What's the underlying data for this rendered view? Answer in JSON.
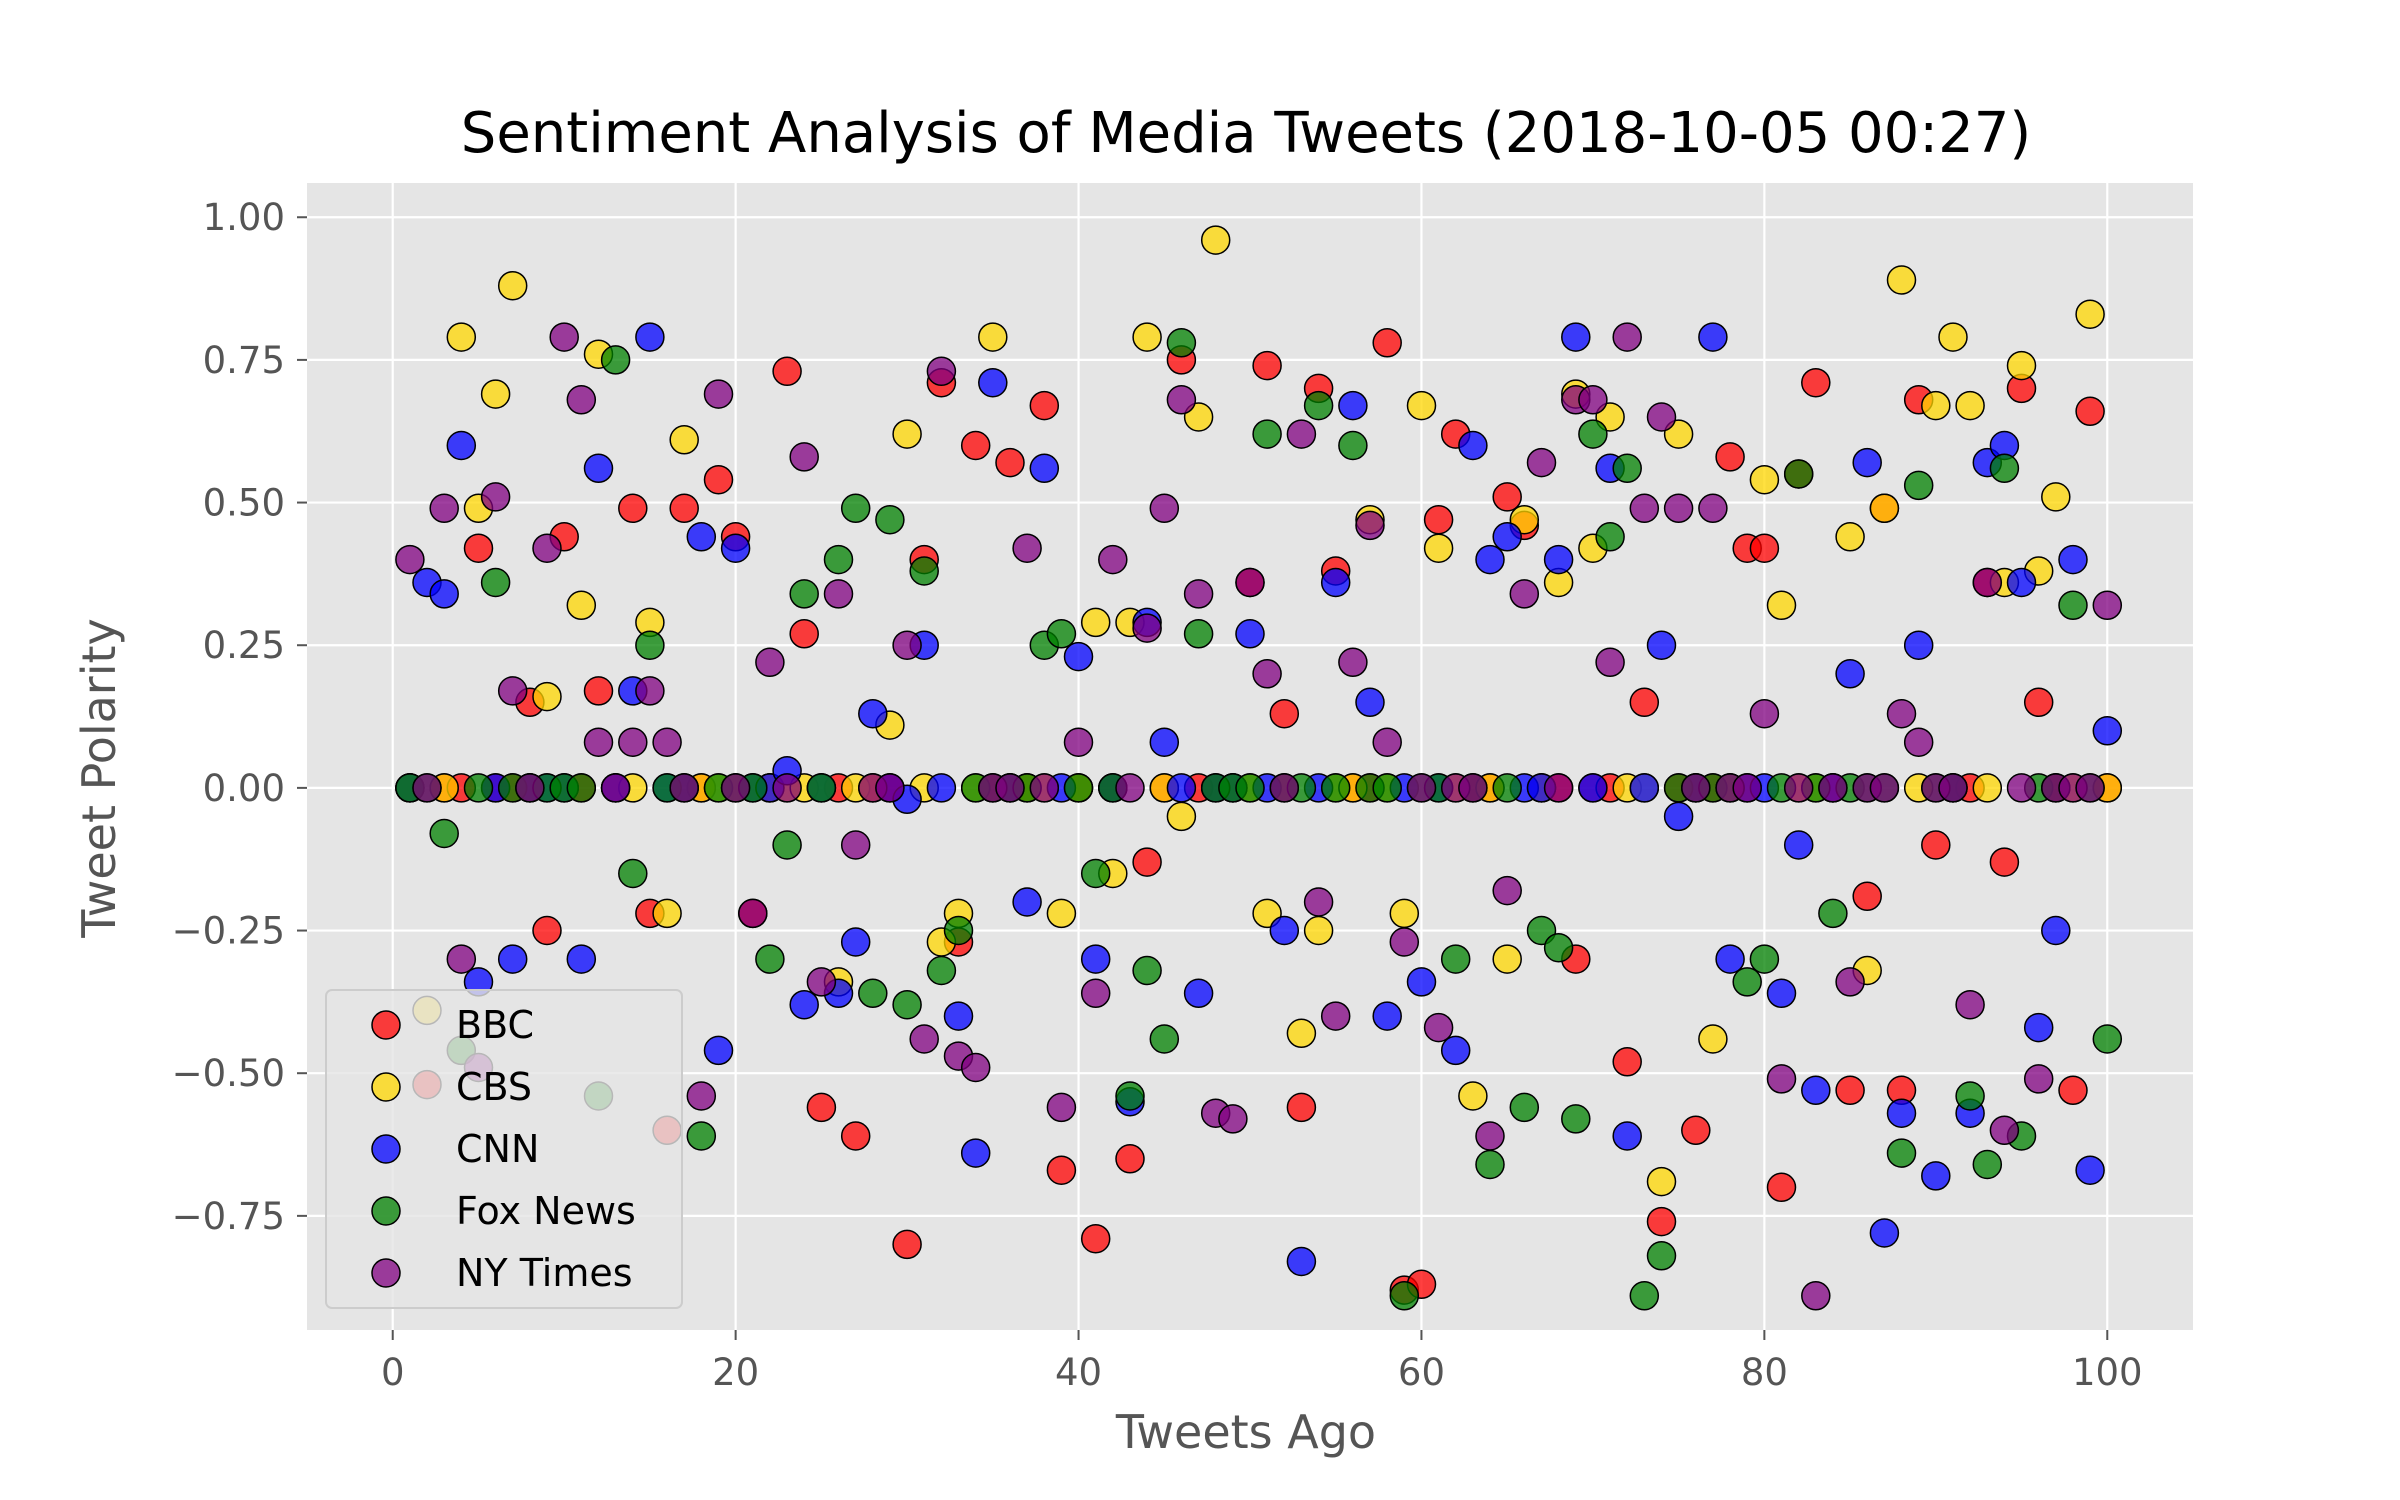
{
  "chart_data": {
    "type": "scatter",
    "title": "Sentiment Analysis of Media Tweets (2018-10-05 00:27)",
    "xlabel": "Tweets Ago",
    "ylabel": "Tweet Polarity",
    "xlim": [
      -5,
      105
    ],
    "ylim": [
      -0.95,
      1.06
    ],
    "xticks": [
      0,
      20,
      40,
      60,
      80,
      100
    ],
    "xtick_labels": [
      "0",
      "20",
      "40",
      "60",
      "80",
      "100"
    ],
    "yticks": [
      1.0,
      0.75,
      0.5,
      0.25,
      0.0,
      -0.25,
      -0.5,
      -0.75
    ],
    "ytick_labels": [
      "1.00",
      "0.75",
      "0.50",
      "0.25",
      "0.00",
      "−0.25",
      "−0.50",
      "−0.75"
    ],
    "grid": true,
    "legend_position": "lower-left",
    "style": {
      "background": "#E5E5E5",
      "grid_color": "#FFFFFF",
      "edge_color": "#000000",
      "alpha": 0.75
    },
    "series": [
      {
        "name": "BBC",
        "color": "#FF0000",
        "x": [
          1,
          2,
          3,
          4,
          5,
          6,
          7,
          8,
          9,
          10,
          11,
          12,
          13,
          14,
          15,
          16,
          17,
          18,
          19,
          20,
          21,
          22,
          23,
          24,
          25,
          26,
          27,
          28,
          29,
          30,
          31,
          32,
          33,
          34,
          35,
          36,
          37,
          38,
          39,
          40,
          41,
          42,
          43,
          44,
          45,
          46,
          47,
          48,
          49,
          50,
          51,
          52,
          53,
          54,
          55,
          56,
          57,
          58,
          59,
          60,
          61,
          62,
          63,
          64,
          65,
          66,
          67,
          68,
          69,
          70,
          71,
          72,
          73,
          74,
          75,
          76,
          77,
          78,
          79,
          80,
          81,
          82,
          83,
          84,
          85,
          86,
          87,
          88,
          89,
          90,
          91,
          92,
          93,
          94,
          95,
          96,
          97,
          98,
          99,
          100
        ],
        "y": [
          0,
          -0.52,
          0,
          0,
          0.42,
          0,
          0,
          0.15,
          -0.25,
          0.44,
          0,
          0.17,
          0,
          0.49,
          -0.22,
          -0.6,
          0.49,
          0,
          0.54,
          0.44,
          -0.22,
          0,
          0.73,
          0.27,
          -0.56,
          0,
          -0.61,
          0,
          0,
          -0.8,
          0.4,
          0.71,
          -0.27,
          0.6,
          0,
          0.57,
          0,
          0.67,
          -0.67,
          0,
          -0.79,
          0,
          -0.65,
          -0.13,
          0,
          0.75,
          0,
          0,
          0,
          0.36,
          0.74,
          0.13,
          -0.56,
          0.7,
          0.38,
          0,
          0,
          0.78,
          -0.88,
          -0.87,
          0.47,
          0.62,
          0,
          0,
          0.51,
          0.46,
          0,
          0,
          -0.3,
          0,
          0,
          -0.48,
          0.15,
          -0.76,
          0,
          -0.6,
          0,
          0.58,
          0.42,
          0.42,
          -0.7,
          0.55,
          0.71,
          0,
          -0.53,
          -0.19,
          0.49,
          -0.53,
          0.68,
          -0.1,
          0,
          0,
          0.36,
          -0.13,
          0.7,
          0.15,
          0,
          -0.53,
          0.66,
          0
        ]
      },
      {
        "name": "CBS",
        "color": "#FFD700",
        "x": [
          1,
          2,
          3,
          4,
          5,
          6,
          7,
          8,
          9,
          10,
          11,
          12,
          13,
          14,
          15,
          16,
          17,
          18,
          19,
          20,
          21,
          22,
          23,
          24,
          25,
          26,
          27,
          28,
          29,
          30,
          31,
          32,
          33,
          34,
          35,
          36,
          37,
          38,
          39,
          40,
          41,
          42,
          43,
          44,
          45,
          46,
          47,
          48,
          49,
          50,
          51,
          52,
          53,
          54,
          55,
          56,
          57,
          58,
          59,
          60,
          61,
          62,
          63,
          64,
          65,
          66,
          67,
          68,
          69,
          70,
          71,
          72,
          73,
          74,
          75,
          76,
          77,
          78,
          79,
          80,
          81,
          82,
          83,
          84,
          85,
          86,
          87,
          88,
          89,
          90,
          91,
          92,
          93,
          94,
          95,
          96,
          97,
          98,
          99,
          100
        ],
        "y": [
          0,
          -0.39,
          0,
          0.79,
          0.49,
          0.69,
          0.88,
          0,
          0.16,
          0,
          0.32,
          0.76,
          0,
          0,
          0.29,
          -0.22,
          0.61,
          0,
          0,
          0,
          0,
          0,
          0,
          0,
          0,
          -0.34,
          0,
          0,
          0.11,
          0.62,
          0,
          -0.27,
          -0.22,
          0,
          0.79,
          0,
          0,
          0,
          -0.22,
          0,
          0.29,
          -0.15,
          0.29,
          0.79,
          0,
          -0.05,
          0.65,
          0.96,
          0,
          0,
          -0.22,
          0,
          -0.43,
          -0.25,
          0,
          0,
          0.47,
          0,
          -0.22,
          0.67,
          0.42,
          0,
          -0.54,
          0,
          -0.3,
          0.47,
          0,
          0.36,
          0.69,
          0.42,
          0.65,
          0,
          0,
          -0.69,
          0.62,
          0,
          -0.44,
          0,
          0,
          0.54,
          0.32,
          0,
          0,
          0,
          0.44,
          -0.32,
          0.49,
          0.89,
          0,
          0.67,
          0.79,
          0.67,
          0,
          0.36,
          0.74,
          0.38,
          0.51,
          0,
          0.83,
          0
        ]
      },
      {
        "name": "CNN",
        "color": "#0000FF",
        "x": [
          1,
          2,
          3,
          4,
          5,
          6,
          7,
          8,
          9,
          10,
          11,
          12,
          13,
          14,
          15,
          16,
          17,
          18,
          19,
          20,
          21,
          22,
          23,
          24,
          25,
          26,
          27,
          28,
          29,
          30,
          31,
          32,
          33,
          34,
          35,
          36,
          37,
          38,
          39,
          40,
          41,
          42,
          43,
          44,
          45,
          46,
          47,
          48,
          49,
          50,
          51,
          52,
          53,
          54,
          55,
          56,
          57,
          58,
          59,
          60,
          61,
          62,
          63,
          64,
          65,
          66,
          67,
          68,
          69,
          70,
          71,
          72,
          73,
          74,
          75,
          76,
          77,
          78,
          79,
          80,
          81,
          82,
          83,
          84,
          85,
          86,
          87,
          88,
          89,
          90,
          91,
          92,
          93,
          94,
          95,
          96,
          97,
          98,
          99,
          100
        ],
        "y": [
          0,
          0.36,
          0.34,
          0.6,
          -0.34,
          0,
          -0.3,
          0,
          0,
          0,
          -0.3,
          0.56,
          0,
          0.17,
          0.79,
          0,
          0,
          0.44,
          -0.46,
          0.42,
          0,
          0,
          0.03,
          -0.38,
          0,
          -0.36,
          -0.27,
          0.13,
          0,
          -0.02,
          0.25,
          0,
          -0.4,
          -0.64,
          0.71,
          0,
          -0.2,
          0.56,
          0,
          0.23,
          -0.3,
          0,
          -0.55,
          0.29,
          0.08,
          0,
          -0.36,
          0,
          0,
          0.27,
          0,
          -0.25,
          -0.83,
          0,
          0.36,
          0.67,
          0.15,
          -0.4,
          0,
          -0.34,
          0,
          -0.46,
          0.6,
          0.4,
          0.44,
          0,
          0,
          0.4,
          0.79,
          0,
          0.56,
          -0.61,
          0,
          0.25,
          -0.05,
          0,
          0.79,
          -0.3,
          0,
          0,
          -0.36,
          -0.1,
          -0.53,
          0,
          0.2,
          0.57,
          -0.78,
          -0.57,
          0.25,
          -0.68,
          0,
          -0.57,
          0.57,
          0.6,
          0.36,
          -0.42,
          -0.25,
          0.4,
          -0.67,
          0.1
        ]
      },
      {
        "name": "Fox News",
        "color": "#008000",
        "x": [
          1,
          2,
          3,
          4,
          5,
          6,
          7,
          8,
          9,
          10,
          11,
          12,
          13,
          14,
          15,
          16,
          17,
          18,
          19,
          20,
          21,
          22,
          23,
          24,
          25,
          26,
          27,
          28,
          29,
          30,
          31,
          32,
          33,
          34,
          35,
          36,
          37,
          38,
          39,
          40,
          41,
          42,
          43,
          44,
          45,
          46,
          47,
          48,
          49,
          50,
          51,
          52,
          53,
          54,
          55,
          56,
          57,
          58,
          59,
          60,
          61,
          62,
          63,
          64,
          65,
          66,
          67,
          68,
          69,
          70,
          71,
          72,
          73,
          74,
          75,
          76,
          77,
          78,
          79,
          80,
          81,
          82,
          83,
          84,
          85,
          86,
          87,
          88,
          89,
          90,
          91,
          92,
          93,
          94,
          95,
          96,
          97,
          98,
          99,
          100
        ],
        "y": [
          0,
          0,
          -0.08,
          -0.46,
          0,
          0.36,
          0,
          0,
          0,
          0,
          0,
          -0.54,
          0.75,
          -0.15,
          0.25,
          0,
          0,
          -0.61,
          0,
          0,
          0,
          -0.3,
          -0.1,
          0.34,
          0,
          0.4,
          0.49,
          -0.36,
          0.47,
          -0.38,
          0.38,
          -0.32,
          -0.25,
          0,
          0,
          0,
          0,
          0.25,
          0.27,
          0,
          -0.15,
          0,
          -0.54,
          -0.32,
          -0.44,
          0.78,
          0.27,
          0,
          0,
          0,
          0.62,
          0,
          0,
          0.67,
          0,
          0.6,
          0,
          0,
          -0.89,
          0,
          0,
          -0.3,
          0,
          -0.66,
          0,
          -0.56,
          -0.25,
          -0.28,
          -0.58,
          0.62,
          0.44,
          0.56,
          -0.89,
          -0.82,
          0,
          0,
          0,
          0,
          -0.34,
          -0.3,
          0,
          0.55,
          0,
          -0.22,
          0,
          0,
          0,
          -0.64,
          0.53,
          0,
          0,
          -0.54,
          -0.66,
          0.56,
          -0.61,
          0,
          0,
          0.32,
          0,
          -0.44
        ]
      },
      {
        "name": "NY Times",
        "color": "#800080",
        "x": [
          1,
          2,
          3,
          4,
          5,
          6,
          7,
          8,
          9,
          10,
          11,
          12,
          13,
          14,
          15,
          16,
          17,
          18,
          19,
          20,
          21,
          22,
          23,
          24,
          25,
          26,
          27,
          28,
          29,
          30,
          31,
          32,
          33,
          34,
          35,
          36,
          37,
          38,
          39,
          40,
          41,
          42,
          43,
          44,
          45,
          46,
          47,
          48,
          49,
          50,
          51,
          52,
          53,
          54,
          55,
          56,
          57,
          58,
          59,
          60,
          61,
          62,
          63,
          64,
          65,
          66,
          67,
          68,
          69,
          70,
          71,
          72,
          73,
          74,
          75,
          76,
          77,
          78,
          79,
          80,
          81,
          82,
          83,
          84,
          85,
          86,
          87,
          88,
          89,
          90,
          91,
          92,
          93,
          94,
          95,
          96,
          97,
          98,
          99,
          100
        ],
        "y": [
          0.4,
          0,
          0.49,
          -0.3,
          -0.49,
          0.51,
          0.17,
          0,
          0.42,
          0.79,
          0.68,
          0.08,
          0,
          0.08,
          0.17,
          0.08,
          0,
          -0.54,
          0.69,
          0,
          -0.22,
          0.22,
          0,
          0.58,
          -0.34,
          0.34,
          -0.1,
          0,
          0,
          0.25,
          -0.44,
          0.73,
          -0.47,
          -0.49,
          0,
          0,
          0.42,
          0,
          -0.56,
          0.08,
          -0.36,
          0.4,
          0,
          0.28,
          0.49,
          0.68,
          0.34,
          -0.57,
          -0.58,
          0.36,
          0.2,
          0,
          0.62,
          -0.2,
          -0.4,
          0.22,
          0.46,
          0.08,
          -0.27,
          0,
          -0.42,
          0,
          0,
          -0.61,
          -0.18,
          0.34,
          0.57,
          0,
          0.68,
          0.68,
          0.22,
          0.79,
          0.49,
          0.65,
          0.49,
          0,
          0.49,
          0,
          0,
          0.13,
          -0.51,
          0,
          -0.89,
          0,
          -0.34,
          0,
          0,
          0.13,
          0.08,
          0,
          0,
          -0.38,
          0.36,
          -0.6,
          0,
          -0.51,
          0,
          0,
          0,
          0.32
        ]
      }
    ]
  }
}
